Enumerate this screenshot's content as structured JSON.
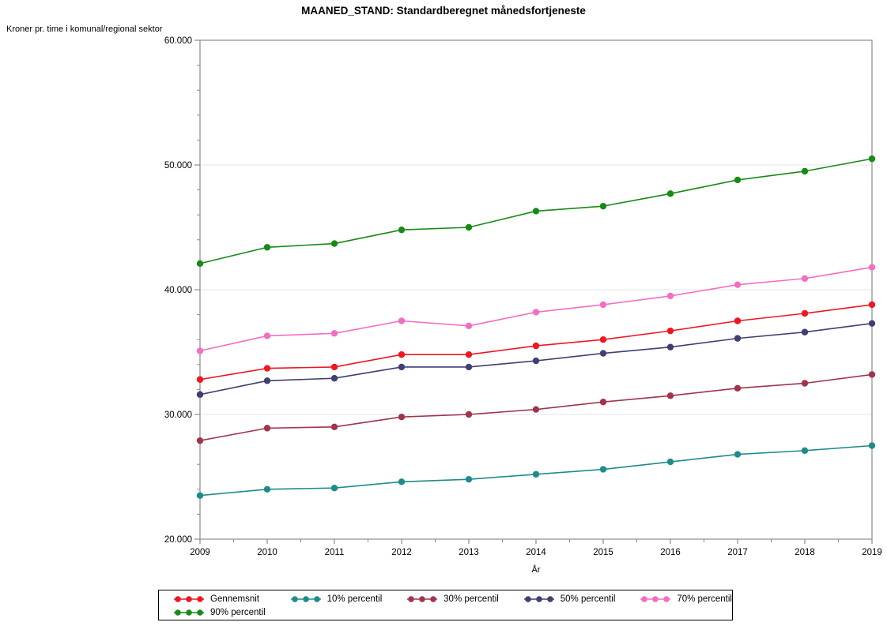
{
  "title": "MAANED_STAND: Standardberegnet månedsfortjeneste",
  "axes": {
    "y_title": "Kroner pr. time i komunal/regional sektor",
    "x_title": "År",
    "y_tick_labels": [
      "20.000",
      "30.000",
      "40.000",
      "50.000",
      "60.000"
    ],
    "y_tick_values": [
      20000,
      30000,
      40000,
      50000,
      60000
    ],
    "y_minor_step": 2000,
    "x_tick_labels": [
      "2009",
      "2010",
      "2011",
      "2012",
      "2013",
      "2014",
      "2015",
      "2016",
      "2017",
      "2018",
      "2019"
    ]
  },
  "style_colors": {
    "axis": "#8a8a8a",
    "gridline": "#e4e4e4",
    "text": "#000000",
    "legend_border": "#000000",
    "background": "#ffffff"
  },
  "chart_data": {
    "type": "line",
    "title": "MAANED_STAND: Standardberegnet månedsfortjeneste",
    "xlabel": "År",
    "ylabel": "Kroner pr. time i komunal/regional sektor",
    "x": [
      2009,
      2010,
      2011,
      2012,
      2013,
      2014,
      2015,
      2016,
      2017,
      2018,
      2019
    ],
    "ylim": [
      20000,
      60000
    ],
    "grid": "horizontal-major-only",
    "legend_position": "bottom",
    "marker": "filled-circle",
    "series": [
      {
        "name": "Gennemsnit",
        "color": "#ee1722",
        "values": [
          32800,
          33700,
          33800,
          34800,
          34800,
          35500,
          36000,
          36700,
          37500,
          38100,
          38800
        ]
      },
      {
        "name": "10% percentil",
        "color": "#1f8b8b",
        "values": [
          23500,
          24000,
          24100,
          24600,
          24800,
          25200,
          25600,
          26200,
          26800,
          27100,
          27500
        ]
      },
      {
        "name": "30% percentil",
        "color": "#a1344c",
        "values": [
          27900,
          28900,
          29000,
          29800,
          30000,
          30400,
          31000,
          31500,
          32100,
          32500,
          33200
        ]
      },
      {
        "name": "50% percentil",
        "color": "#3f3f73",
        "values": [
          31600,
          32700,
          32900,
          33800,
          33800,
          34300,
          34900,
          35400,
          36100,
          36600,
          37300
        ]
      },
      {
        "name": "70% percentil",
        "color": "#f36ec3",
        "values": [
          35100,
          36300,
          36500,
          37500,
          37100,
          38200,
          38800,
          39500,
          40400,
          40900,
          41800
        ]
      },
      {
        "name": "90% percentil",
        "color": "#178a17",
        "values": [
          42100,
          43400,
          43700,
          44800,
          45000,
          46300,
          46700,
          47700,
          48800,
          49500,
          50500
        ]
      }
    ],
    "legend_rows": [
      [
        0,
        1,
        2,
        3,
        4
      ],
      [
        5
      ]
    ]
  }
}
